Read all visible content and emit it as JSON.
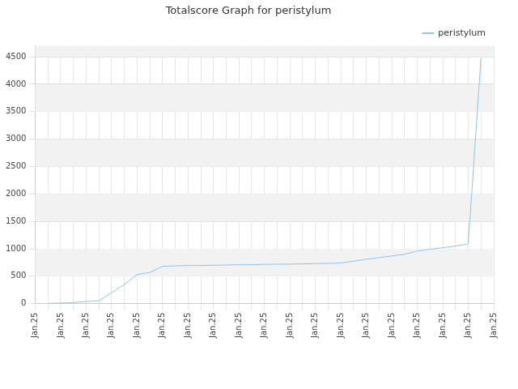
{
  "chart_data": {
    "type": "line",
    "title": "Totalscore Graph for peristylum",
    "categories": [
      "Jan.25",
      null,
      "Jan.25",
      null,
      "Jan.25",
      null,
      "Jan.25",
      null,
      "Jan.25",
      null,
      "Jan.25",
      null,
      "Jan.25",
      null,
      "Jan.25",
      null,
      "Jan.25",
      null,
      "Jan.25",
      null,
      "Jan.25",
      null,
      "Jan.25",
      null,
      "Jan.25",
      null,
      "Jan.25",
      null,
      "Jan.25",
      null,
      "Jan.25",
      null,
      "Jan.25",
      null,
      "Jan.25",
      null,
      "Jan.25"
    ],
    "series": [
      {
        "name": "peristylum",
        "color": "#8ec3ee",
        "values": [
          null,
          5,
          10,
          20,
          40,
          50,
          200,
          350,
          530,
          570,
          680,
          690,
          695,
          695,
          700,
          705,
          710,
          710,
          715,
          720,
          720,
          725,
          730,
          735,
          740,
          775,
          810,
          840,
          870,
          900,
          960,
          990,
          1020,
          1050,
          1090,
          4480,
          null
        ]
      }
    ],
    "ylim": [
      0,
      4700
    ],
    "yticks": [
      0,
      500,
      1000,
      1500,
      2000,
      2500,
      3000,
      3500,
      4000,
      4500
    ],
    "grid": true,
    "legend": "top-right"
  }
}
